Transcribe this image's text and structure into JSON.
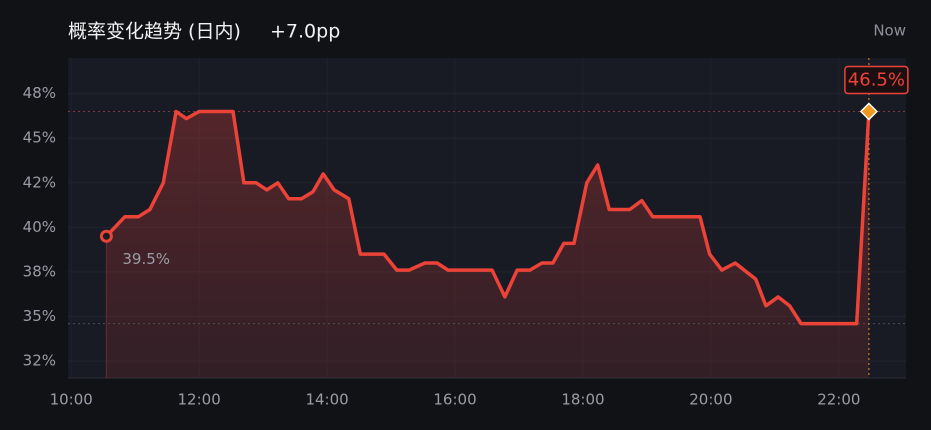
{
  "chart_data": {
    "type": "line",
    "title": "概率变化趋势 (日内)",
    "subtitle": "+7.0pp",
    "now_label": "Now",
    "x": [
      10.55,
      10.84,
      11.05,
      11.23,
      11.44,
      11.64,
      11.8,
      12.0,
      12.53,
      12.7,
      12.89,
      13.06,
      13.23,
      13.4,
      13.6,
      13.78,
      13.94,
      14.11,
      14.34,
      14.52,
      14.89,
      15.09,
      15.28,
      15.53,
      15.72,
      15.89,
      16.58,
      16.78,
      16.97,
      17.17,
      17.36,
      17.53,
      17.7,
      17.86,
      18.06,
      18.23,
      18.41,
      18.73,
      18.92,
      19.09,
      19.83,
      19.98,
      20.17,
      20.38,
      20.7,
      20.86,
      21.05,
      21.23,
      21.41,
      22.28,
      22.47
    ],
    "values": [
      39.5,
      40.6,
      40.6,
      41.0,
      42.5,
      46.5,
      46.1,
      46.5,
      46.5,
      42.5,
      42.5,
      42.1,
      42.5,
      41.6,
      41.6,
      42.0,
      43.0,
      42.1,
      41.6,
      38.5,
      38.5,
      37.6,
      37.6,
      38.0,
      38.0,
      37.6,
      37.6,
      36.1,
      37.6,
      37.6,
      38.0,
      38.0,
      39.1,
      39.1,
      42.5,
      43.5,
      41.0,
      41.0,
      41.5,
      40.6,
      40.6,
      38.5,
      37.6,
      38.0,
      37.1,
      35.6,
      36.1,
      35.6,
      34.6,
      34.6,
      46.5
    ],
    "value_labels": [
      "39.5%",
      null,
      null,
      null,
      null,
      null,
      null,
      null,
      null,
      null,
      null,
      null,
      null,
      null,
      null,
      null,
      null,
      null,
      null,
      null,
      null,
      null,
      null,
      null,
      null,
      null,
      null,
      null,
      null,
      null,
      null,
      null,
      null,
      null,
      null,
      null,
      null,
      null,
      null,
      null,
      null,
      null,
      null,
      null,
      null,
      null,
      null,
      null,
      null,
      null,
      "46.5%"
    ],
    "color": "#ec4338",
    "xlim": [
      9.95,
      23.05
    ],
    "xticks": [
      {
        "value": 10,
        "label": "10:00"
      },
      {
        "value": 12,
        "label": "12:00"
      },
      {
        "value": 14,
        "label": "14:00"
      },
      {
        "value": 16,
        "label": "16:00"
      },
      {
        "value": 18,
        "label": "18:00"
      },
      {
        "value": 20,
        "label": "20:00"
      },
      {
        "value": 22,
        "label": "22:00"
      }
    ],
    "ylim": [
      31.55,
      49.5
    ],
    "yticks": [
      {
        "value": 32.5,
        "label": "32%"
      },
      {
        "value": 35,
        "label": "35%"
      },
      {
        "value": 37.5,
        "label": "38%"
      },
      {
        "value": 40,
        "label": "40%"
      },
      {
        "value": 42.5,
        "label": "42%"
      },
      {
        "value": 45,
        "label": "45%"
      },
      {
        "value": 47.5,
        "label": "48%"
      }
    ],
    "grid": true
  }
}
